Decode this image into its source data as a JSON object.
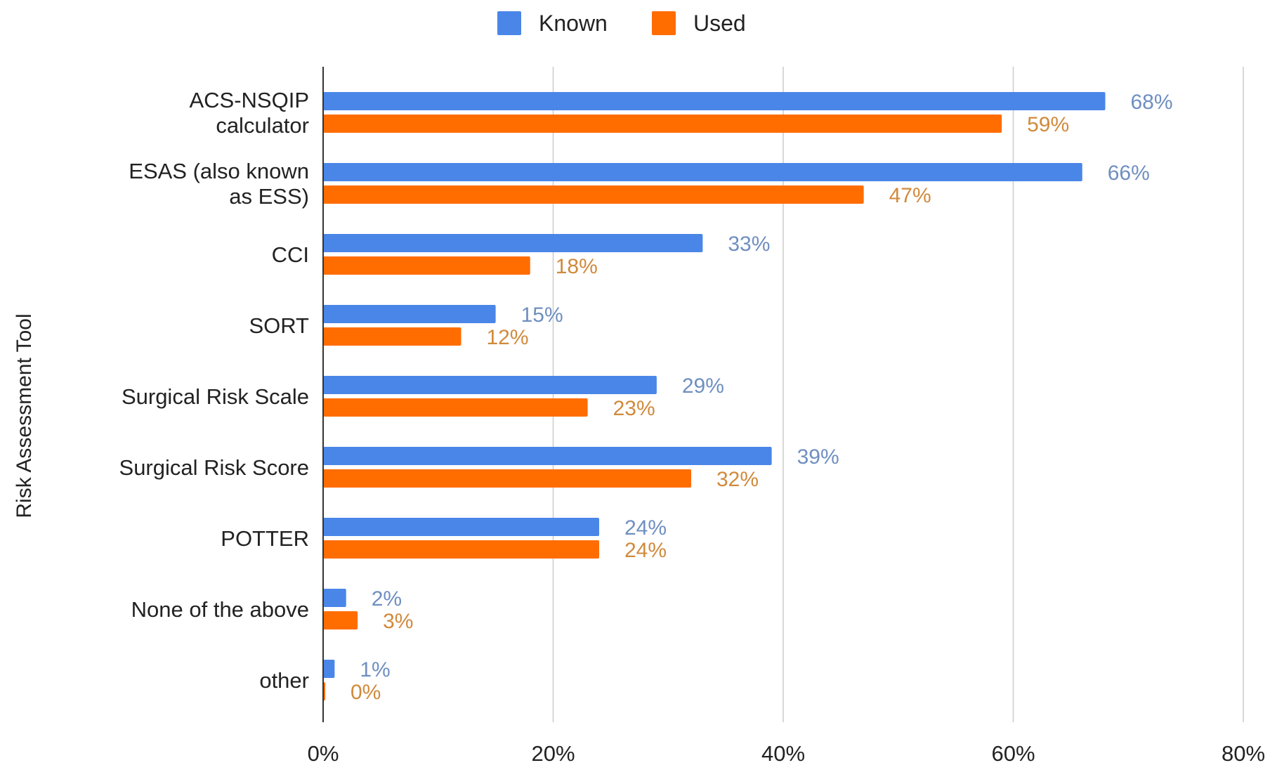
{
  "chart_data": {
    "type": "bar",
    "orientation": "horizontal",
    "title": "",
    "xlabel": "",
    "ylabel": "Risk Assessment Tool",
    "xlim": [
      0,
      80
    ],
    "x_ticks": [
      0,
      20,
      40,
      60,
      80
    ],
    "x_tick_labels": [
      "0%",
      "20%",
      "40%",
      "60%",
      "80%"
    ],
    "grid": true,
    "legend_position": "top",
    "categories": [
      [
        "ACS-NSQIP",
        "calculator"
      ],
      [
        "ESAS (also known",
        "as ESS)"
      ],
      [
        "CCI"
      ],
      [
        "SORT"
      ],
      [
        "Surgical Risk Scale"
      ],
      [
        "Surgical Risk Score"
      ],
      [
        "POTTER"
      ],
      [
        "None of the above"
      ],
      [
        "other"
      ]
    ],
    "series": [
      {
        "name": "Known",
        "color": "#4a86e8",
        "label_color": "#6f8fc0",
        "values": [
          68,
          66,
          33,
          15,
          29,
          39,
          24,
          2,
          1
        ],
        "data_labels": [
          "68%",
          "66%",
          "33%",
          "15%",
          "29%",
          "39%",
          "24%",
          "2%",
          "1%"
        ]
      },
      {
        "name": "Used",
        "color": "#ff6d01",
        "label_color": "#d08a3c",
        "values": [
          59,
          47,
          18,
          12,
          23,
          32,
          24,
          3,
          0
        ],
        "data_labels": [
          "59%",
          "47%",
          "18%",
          "12%",
          "23%",
          "32%",
          "24%",
          "3%",
          "0%"
        ]
      }
    ]
  }
}
